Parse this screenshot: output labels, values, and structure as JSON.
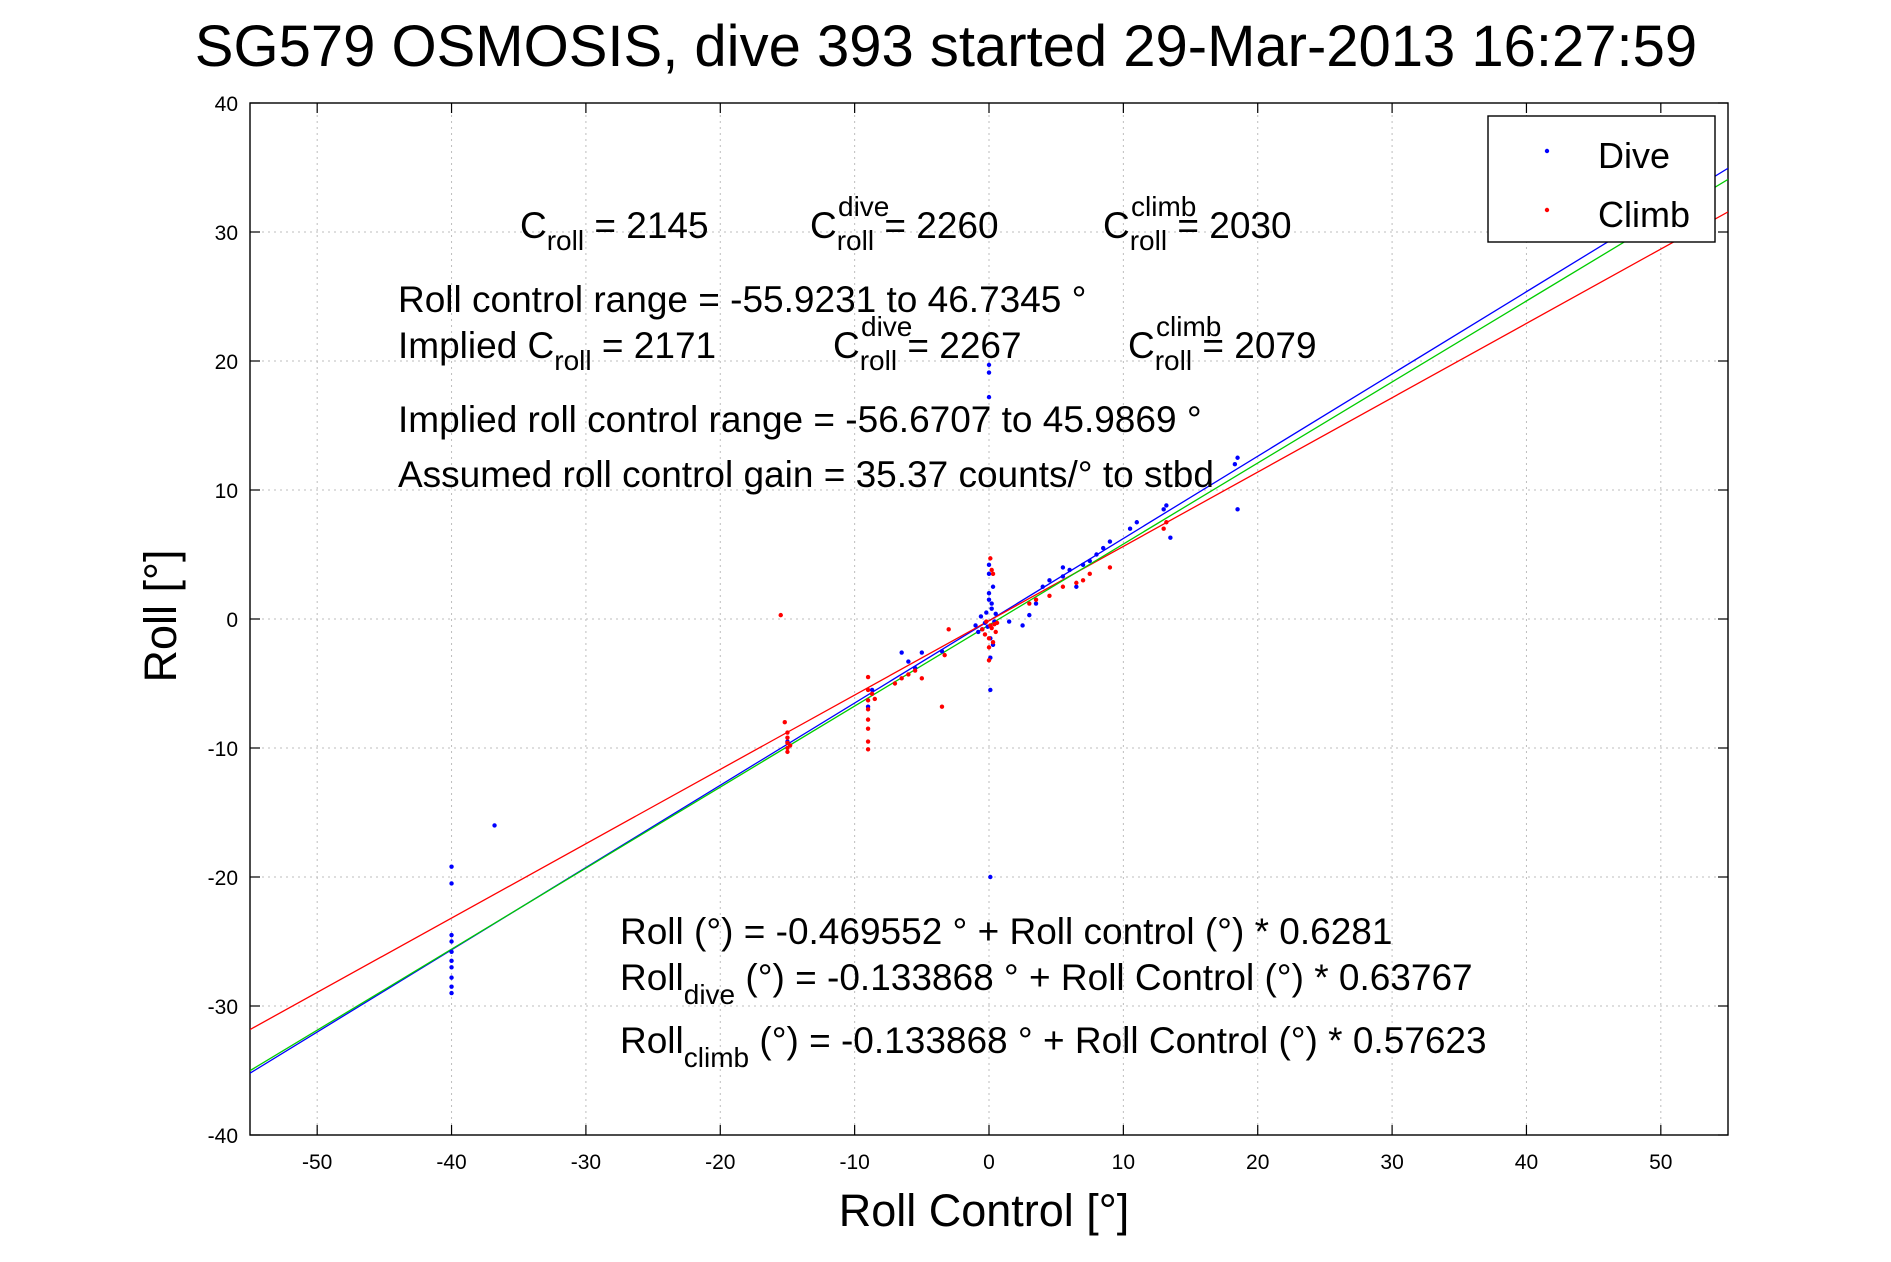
{
  "chart_data": {
    "type": "scatter",
    "title": "SG579 OSMOSIS, dive 393 started 29-Mar-2013 16:27:59",
    "xlabel": "Roll Control [°]",
    "ylabel": "Roll [°]",
    "xlim": [
      -55,
      55
    ],
    "ylim": [
      -40,
      40
    ],
    "xticks": [
      -50,
      -40,
      -30,
      -20,
      -10,
      0,
      10,
      20,
      30,
      40,
      50
    ],
    "yticks": [
      -40,
      -30,
      -20,
      -10,
      0,
      10,
      20,
      30,
      40
    ],
    "grid": true,
    "legend_position": "top-right",
    "series": [
      {
        "name": "Dive",
        "color": "#0000ff",
        "points": [
          [
            -40.0,
            -19.2
          ],
          [
            -40.0,
            -20.5
          ],
          [
            -40.0,
            -24.5
          ],
          [
            -40.0,
            -25.0
          ],
          [
            -40.0,
            -25.8
          ],
          [
            -40.0,
            -26.5
          ],
          [
            -40.0,
            -27.0
          ],
          [
            -40.0,
            -27.8
          ],
          [
            -40.0,
            -28.5
          ],
          [
            -40.0,
            -29.0
          ],
          [
            -36.8,
            -16.0
          ],
          [
            -15.0,
            -9.5
          ],
          [
            -9.0,
            -6.8
          ],
          [
            -8.7,
            -5.5
          ],
          [
            -6.5,
            -2.6
          ],
          [
            -6.0,
            -3.3
          ],
          [
            -5.5,
            -3.8
          ],
          [
            -5.0,
            -2.6
          ],
          [
            -3.5,
            -2.5
          ],
          [
            -1.0,
            -0.5
          ],
          [
            -0.8,
            -1.0
          ],
          [
            -0.6,
            0.2
          ],
          [
            -0.5,
            -0.8
          ],
          [
            -0.3,
            -0.3
          ],
          [
            -0.2,
            0.5
          ],
          [
            -0.1,
            -0.6
          ],
          [
            0.0,
            1.5
          ],
          [
            0.0,
            2.0
          ],
          [
            0.0,
            3.5
          ],
          [
            0.0,
            4.2
          ],
          [
            0.1,
            -1.5
          ],
          [
            0.1,
            -3.0
          ],
          [
            0.1,
            -5.5
          ],
          [
            0.2,
            0.8
          ],
          [
            0.2,
            1.2
          ],
          [
            0.3,
            -2.0
          ],
          [
            0.3,
            2.5
          ],
          [
            0.4,
            -0.2
          ],
          [
            0.5,
            0.4
          ],
          [
            0.0,
            17.2
          ],
          [
            0.0,
            19.1
          ],
          [
            0.0,
            19.7
          ],
          [
            0.1,
            -20.0
          ],
          [
            1.5,
            -0.2
          ],
          [
            2.5,
            -0.5
          ],
          [
            3.0,
            0.3
          ],
          [
            3.5,
            1.2
          ],
          [
            4.0,
            2.5
          ],
          [
            4.5,
            3.0
          ],
          [
            5.5,
            3.3
          ],
          [
            5.5,
            4.0
          ],
          [
            6.0,
            3.8
          ],
          [
            6.5,
            2.5
          ],
          [
            7.0,
            4.2
          ],
          [
            7.5,
            4.5
          ],
          [
            8.0,
            5.0
          ],
          [
            8.5,
            5.5
          ],
          [
            9.0,
            6.0
          ],
          [
            10.5,
            7.0
          ],
          [
            11.0,
            7.5
          ],
          [
            13.0,
            8.5
          ],
          [
            13.2,
            8.8
          ],
          [
            13.5,
            6.3
          ],
          [
            18.3,
            12.0
          ],
          [
            18.5,
            12.5
          ],
          [
            18.5,
            8.5
          ]
        ]
      },
      {
        "name": "Climb",
        "color": "#ff0000",
        "points": [
          [
            -15.5,
            0.3
          ],
          [
            -15.2,
            -8.0
          ],
          [
            -15.0,
            -8.8
          ],
          [
            -15.0,
            -9.2
          ],
          [
            -15.0,
            -9.6
          ],
          [
            -15.0,
            -10.0
          ],
          [
            -15.0,
            -10.3
          ],
          [
            -14.8,
            -9.8
          ],
          [
            -9.0,
            -4.5
          ],
          [
            -9.0,
            -5.5
          ],
          [
            -9.0,
            -6.3
          ],
          [
            -9.0,
            -7.0
          ],
          [
            -9.0,
            -7.8
          ],
          [
            -9.0,
            -8.5
          ],
          [
            -9.0,
            -9.5
          ],
          [
            -9.0,
            -10.1
          ],
          [
            -8.7,
            -5.8
          ],
          [
            -8.5,
            -6.2
          ],
          [
            -7.0,
            -5.0
          ],
          [
            -6.5,
            -4.6
          ],
          [
            -6.0,
            -4.3
          ],
          [
            -5.5,
            -4.0
          ],
          [
            -5.0,
            -4.6
          ],
          [
            -3.5,
            -6.8
          ],
          [
            -3.3,
            -2.8
          ],
          [
            -3.0,
            -0.8
          ],
          [
            -0.5,
            -0.8
          ],
          [
            -0.3,
            -1.2
          ],
          [
            -0.2,
            -0.2
          ],
          [
            0.0,
            -1.5
          ],
          [
            0.0,
            -2.2
          ],
          [
            0.0,
            -3.2
          ],
          [
            0.1,
            -0.5
          ],
          [
            0.2,
            -0.7
          ],
          [
            0.3,
            -1.8
          ],
          [
            0.4,
            -0.4
          ],
          [
            0.5,
            -1.0
          ],
          [
            0.6,
            -0.3
          ],
          [
            0.1,
            4.7
          ],
          [
            0.2,
            3.8
          ],
          [
            0.3,
            3.5
          ],
          [
            3.0,
            1.2
          ],
          [
            3.5,
            1.5
          ],
          [
            4.5,
            1.8
          ],
          [
            5.5,
            2.5
          ],
          [
            6.5,
            2.8
          ],
          [
            7.0,
            3.0
          ],
          [
            7.5,
            3.5
          ],
          [
            9.0,
            4.0
          ],
          [
            13.0,
            7.0
          ],
          [
            13.2,
            7.5
          ]
        ]
      }
    ],
    "fit_lines": [
      {
        "name": "Dive fit",
        "color": "#0000ff",
        "intercept": -0.133868,
        "slope": 0.63767
      },
      {
        "name": "Climb fit",
        "color": "#ff0000",
        "intercept": -0.133868,
        "slope": 0.57623
      },
      {
        "name": "All fit",
        "color": "#00cc00",
        "intercept": -0.469552,
        "slope": 0.6281
      }
    ]
  },
  "annotations": {
    "c_roll": {
      "base": "C",
      "sub": "roll",
      "sup": "",
      "rest": " = 2145"
    },
    "c_dive": {
      "base": "C",
      "sub": "roll",
      "sup": "dive",
      "rest": " = 2260"
    },
    "c_climb": {
      "base": "C",
      "sub": "roll",
      "sup": "climb",
      "rest": " = 2030"
    },
    "range": "Roll control range = -55.9231 to 46.7345 °",
    "implied_c": {
      "base": "Implied C",
      "sub": "roll",
      "rest": " = 2171"
    },
    "implied_dive": {
      "base": "C",
      "sub": "roll",
      "sup": "dive",
      "rest": " = 2267"
    },
    "implied_climb": {
      "base": "C",
      "sub": "roll",
      "sup": "climb",
      "rest": " = 2079"
    },
    "implied_range": "Implied roll control range = -56.6707 to 45.9869 °",
    "gain": "Assumed roll control gain = 35.37 counts/° to stbd",
    "fit_all": "Roll (°) = -0.469552 ° + Roll control (°) * 0.6281",
    "fit_dive": {
      "base": "Roll",
      "sub": "dive",
      "rest": " (°) = -0.133868 ° + Roll Control (°) * 0.63767"
    },
    "fit_climb": {
      "base": "Roll",
      "sub": "climb",
      "rest": " (°) = -0.133868 ° + Roll Control (°) * 0.57623"
    }
  }
}
